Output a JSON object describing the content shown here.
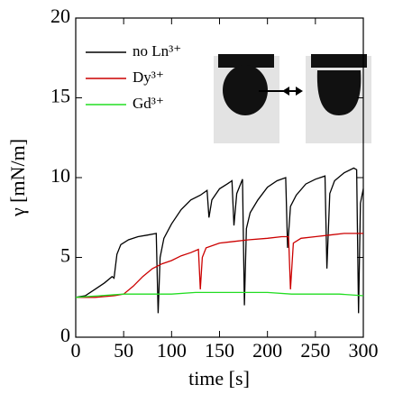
{
  "chart_data": {
    "type": "line",
    "xlabel": "time [s]",
    "ylabel": "γ [mN/m]",
    "xlim": [
      0,
      300
    ],
    "ylim": [
      0,
      20
    ],
    "xticks": [
      0,
      50,
      100,
      150,
      200,
      250,
      300
    ],
    "yticks": [
      0,
      5,
      10,
      15,
      20
    ],
    "series": [
      {
        "name": "no Ln³⁺",
        "color": "#000000",
        "x": [
          0,
          10,
          20,
          30,
          38,
          40,
          43,
          47,
          55,
          65,
          75,
          84,
          86,
          88,
          92,
          100,
          110,
          120,
          130,
          137,
          139,
          142,
          150,
          158,
          163,
          165,
          168,
          174,
          176,
          178,
          182,
          190,
          200,
          210,
          219,
          221,
          224,
          230,
          240,
          250,
          260,
          262,
          265,
          270,
          280,
          290,
          293,
          295,
          297,
          300
        ],
        "values": [
          2.5,
          2.6,
          3.0,
          3.4,
          3.8,
          3.7,
          5.2,
          5.8,
          6.1,
          6.3,
          6.4,
          6.5,
          1.5,
          5.0,
          6.2,
          7.1,
          8.0,
          8.6,
          8.9,
          9.2,
          7.5,
          8.6,
          9.3,
          9.6,
          9.8,
          7.0,
          9.0,
          9.9,
          2.0,
          6.8,
          7.8,
          8.6,
          9.4,
          9.8,
          10.0,
          5.6,
          8.2,
          8.9,
          9.6,
          9.9,
          10.1,
          4.3,
          9.0,
          9.8,
          10.3,
          10.6,
          10.5,
          1.5,
          8.4,
          9.3
        ]
      },
      {
        "name": "Dy³⁺",
        "color": "#cc0000",
        "x": [
          0,
          20,
          40,
          50,
          60,
          70,
          80,
          90,
          100,
          110,
          120,
          128,
          130,
          132,
          136,
          150,
          165,
          180,
          200,
          215,
          222,
          224,
          227,
          235,
          250,
          265,
          280,
          290,
          300
        ],
        "values": [
          2.5,
          2.5,
          2.6,
          2.7,
          3.2,
          3.8,
          4.3,
          4.6,
          4.8,
          5.1,
          5.3,
          5.5,
          3.0,
          5.0,
          5.6,
          5.9,
          6.0,
          6.1,
          6.2,
          6.3,
          6.3,
          3.0,
          5.9,
          6.2,
          6.3,
          6.4,
          6.5,
          6.5,
          6.5
        ]
      },
      {
        "name": "Gd³⁺",
        "color": "#22dd22",
        "x": [
          0,
          25,
          50,
          75,
          100,
          125,
          150,
          175,
          200,
          225,
          250,
          275,
          300
        ],
        "values": [
          2.5,
          2.6,
          2.7,
          2.7,
          2.7,
          2.8,
          2.8,
          2.8,
          2.8,
          2.7,
          2.7,
          2.7,
          2.6
        ]
      }
    ]
  }
}
